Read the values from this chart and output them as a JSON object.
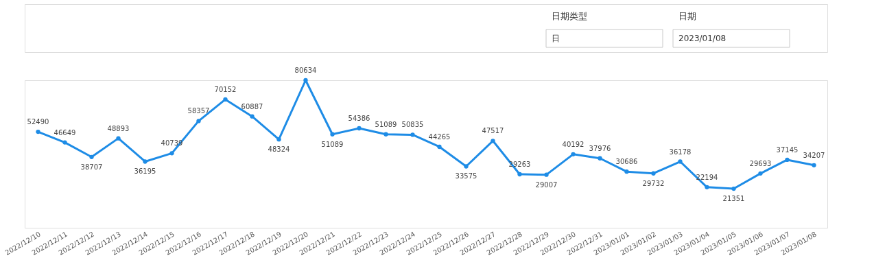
{
  "chart_data": {
    "type": "line",
    "data_labels": true,
    "marker": "circle",
    "line_style": "solid",
    "annotations": [
      "日期类型",
      "日",
      "日期",
      "2023/01/08"
    ],
    "categories": [
      "2022/12/10",
      "2022/12/11",
      "2022/12/12",
      "2022/12/13",
      "2022/12/14",
      "2022/12/15",
      "2022/12/16",
      "2022/12/17",
      "2022/12/18",
      "2022/12/19",
      "2022/12/20",
      "2022/12/21",
      "2022/12/22",
      "2022/12/23",
      "2022/12/24",
      "2022/12/25",
      "2022/12/26",
      "2022/12/27",
      "2022/12/28",
      "2022/12/29",
      "2022/12/30",
      "2022/12/31",
      "2023/01/01",
      "2023/01/02",
      "2023/01/03",
      "2023/01/04",
      "2023/01/05",
      "2023/01/06",
      "2023/01/07",
      "2023/01/08"
    ],
    "series": [
      {
        "color": "#1e8ce6",
        "values": [
          52490,
          46649,
          38707,
          48893,
          36195,
          40739,
          58357,
          70152,
          60887,
          48324,
          80634,
          51089,
          54386,
          51089,
          50835,
          44265,
          33575,
          47517,
          29263,
          29007,
          40192,
          37976,
          30686,
          29732,
          36178,
          22194,
          21351,
          29693,
          37145,
          34207
        ]
      }
    ]
  }
}
